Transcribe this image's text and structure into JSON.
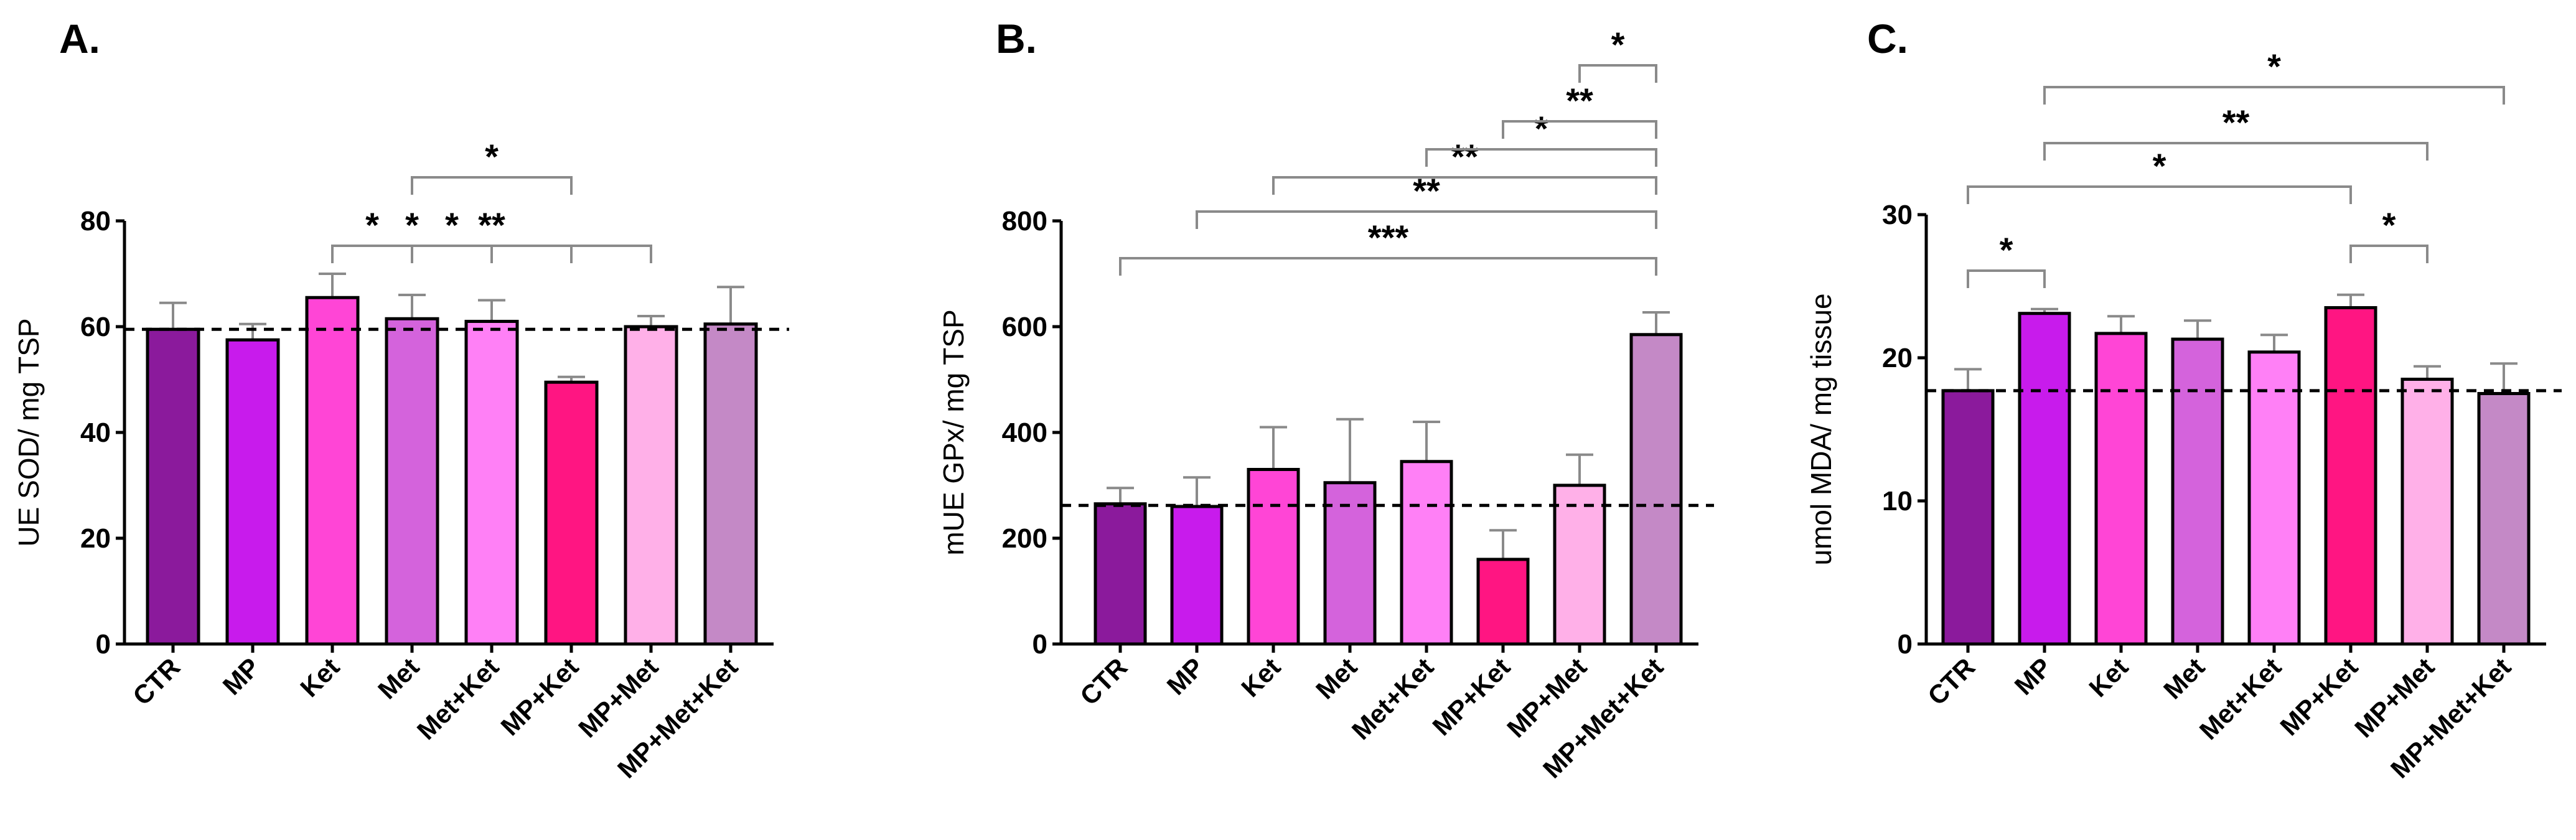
{
  "chart_data": [
    {
      "type": "bar",
      "panel_label": "A.",
      "title": "",
      "xlabel": "",
      "ylabel": "UE SOD/ mg TSP",
      "ylim": [
        0,
        80
      ],
      "yticks": [
        0,
        20,
        40,
        60,
        80
      ],
      "grid": false,
      "categories": [
        "CTR",
        "MP",
        "Ket",
        "Met",
        "Met+Ket",
        "MP+Ket",
        "MP+Met",
        "MP+Met+Ket"
      ],
      "values": [
        59.5,
        57.5,
        65.5,
        61.5,
        61,
        49.5,
        60,
        60.5
      ],
      "errors": [
        5,
        3,
        4.5,
        4.5,
        4,
        1,
        2,
        7
      ],
      "colors": [
        "#8b1a9c",
        "#c81bec",
        "#ff45d6",
        "#d463dc",
        "#ff80f6",
        "#ff1582",
        "#ffb0e8",
        "#c489c6"
      ],
      "reference_line": 59.5,
      "comparisons": [
        {
          "from": "Met",
          "to": "MP+Ket",
          "label": "*"
        },
        {
          "from": "Ket",
          "to": "Met",
          "label": "*"
        },
        {
          "from": "Ket",
          "to": "MP+Ket",
          "label": "*"
        },
        {
          "from": "Ket",
          "to": "Met+Ket",
          "label": "*"
        },
        {
          "from": "Ket",
          "to": "MP+Met",
          "label": "**"
        }
      ]
    },
    {
      "type": "bar",
      "panel_label": "B.",
      "title": "",
      "xlabel": "",
      "ylabel": "mUE GPx/ mg TSP",
      "ylim": [
        0,
        800
      ],
      "yticks": [
        0,
        200,
        400,
        600,
        800
      ],
      "grid": false,
      "categories": [
        "CTR",
        "MP",
        "Ket",
        "Met",
        "Met+Ket",
        "MP+Ket",
        "MP+Met",
        "MP+Met+Ket"
      ],
      "values": [
        265,
        260,
        330,
        305,
        345,
        160,
        300,
        585
      ],
      "errors": [
        30,
        55,
        80,
        120,
        75,
        55,
        58,
        42
      ],
      "colors": [
        "#8b1a9c",
        "#c81bec",
        "#ff45d6",
        "#d463dc",
        "#ff80f6",
        "#ff1582",
        "#ffb0e8",
        "#c489c6"
      ],
      "reference_line": 262,
      "comparisons": [
        {
          "from": "CTR",
          "to": "MP+Met+Ket",
          "label": "***"
        },
        {
          "from": "MP",
          "to": "MP+Met+Ket",
          "label": "**"
        },
        {
          "from": "Ket",
          "to": "MP+Met+Ket",
          "label": "**"
        },
        {
          "from": "Met+Ket",
          "to": "MP+Met+Ket",
          "label": "*"
        },
        {
          "from": "MP+Ket",
          "to": "MP+Met+Ket",
          "label": "**"
        },
        {
          "from": "MP+Met",
          "to": "MP+Met+Ket",
          "label": "*"
        }
      ]
    },
    {
      "type": "bar",
      "panel_label": "C.",
      "title": "",
      "xlabel": "",
      "ylabel": "umol MDA/ mg tissue",
      "ylim": [
        0,
        30
      ],
      "yticks": [
        0,
        10,
        20,
        30
      ],
      "grid": false,
      "categories": [
        "CTR",
        "MP",
        "Ket",
        "Met",
        "Met+Ket",
        "MP+Ket",
        "MP+Met",
        "MP+Met+Ket"
      ],
      "values": [
        17.7,
        23.1,
        21.7,
        21.3,
        20.4,
        23.5,
        18.5,
        17.5
      ],
      "errors": [
        1.5,
        0.3,
        1.2,
        1.3,
        1.2,
        0.9,
        0.9,
        2.1
      ],
      "colors": [
        "#8b1a9c",
        "#c81bec",
        "#ff45d6",
        "#d463dc",
        "#ff80f6",
        "#ff1582",
        "#ffb0e8",
        "#c489c6"
      ],
      "reference_line": 17.7,
      "comparisons": [
        {
          "from": "CTR",
          "to": "MP",
          "label": "*"
        },
        {
          "from": "MP+Ket",
          "to": "MP+Met",
          "label": "*"
        },
        {
          "from": "CTR",
          "to": "MP+Ket",
          "label": "*"
        },
        {
          "from": "MP",
          "to": "MP+Met",
          "label": "**"
        },
        {
          "from": "MP",
          "to": "MP+Met+Ket",
          "label": "*"
        }
      ]
    }
  ]
}
